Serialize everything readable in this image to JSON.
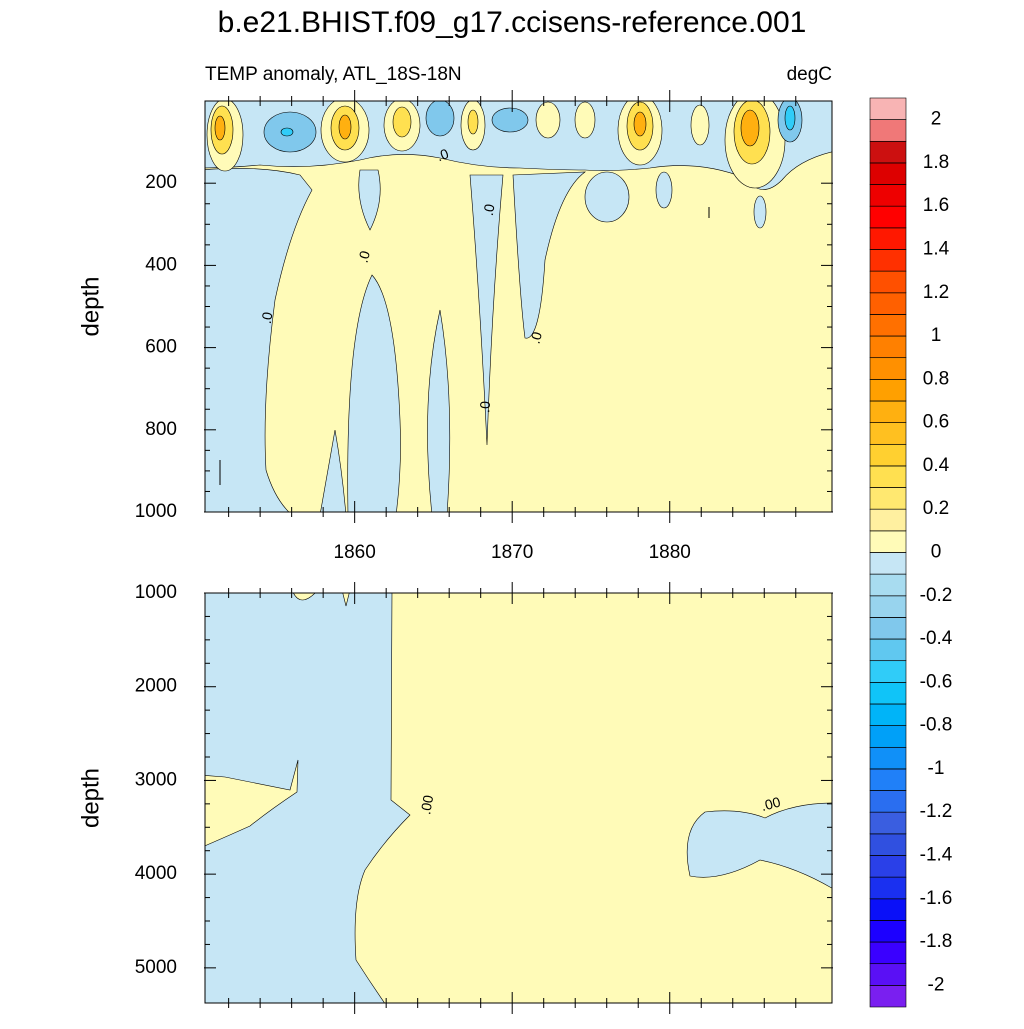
{
  "chart_data": {
    "type": "contour",
    "title": "b.e21.BHIST.f09_g17.ccisens-reference.001",
    "subtitle_left": "TEMP anomaly, ATL_18S-18N",
    "subtitle_right": "degC",
    "contour_labels": [
      ".0",
      ".0",
      ".0",
      ".0",
      ".0",
      ".0",
      ".00",
      ".00"
    ],
    "panels": [
      {
        "ylabel": "depth",
        "ylim": [
          0,
          1000
        ],
        "yticks": [
          200,
          400,
          600,
          800,
          1000
        ],
        "xlim": [
          1850.5,
          1890.3
        ],
        "xticks": [
          1860,
          1870,
          1880
        ],
        "xtick_labels": true
      },
      {
        "ylabel": "depth",
        "ylim": [
          1000,
          5375
        ],
        "yticks": [
          1000,
          2000,
          3000,
          4000,
          5000
        ],
        "xlim": [
          1850.5,
          1890.3
        ],
        "xticks": [
          1860,
          1870,
          1880
        ],
        "xtick_labels": false
      }
    ],
    "colorbar": {
      "levels": [
        -2,
        -1.9,
        -1.8,
        -1.7,
        -1.6,
        -1.5,
        -1.4,
        -1.3,
        -1.2,
        -1.1,
        -1,
        -0.9,
        -0.8,
        -0.7,
        -0.6,
        -0.5,
        -0.4,
        -0.3,
        -0.2,
        -0.1,
        0,
        0.1,
        0.2,
        0.3,
        0.4,
        0.5,
        0.6,
        0.7,
        0.8,
        0.9,
        1,
        1.1,
        1.2,
        1.3,
        1.4,
        1.5,
        1.6,
        1.7,
        1.8,
        1.9,
        2
      ],
      "ticks": [
        -2,
        -1.8,
        -1.6,
        -1.4,
        -1.2,
        -1,
        -0.8,
        -0.6,
        -0.4,
        -0.2,
        0,
        0.2,
        0.4,
        0.6,
        0.8,
        1,
        1.2,
        1.4,
        1.6,
        1.8,
        2
      ],
      "colors": [
        "#7a1ff0",
        "#5a10f5",
        "#3a00ff",
        "#1c00ff",
        "#0a10f8",
        "#1a30f0",
        "#2a40e8",
        "#3050e0",
        "#3a5ee0",
        "#2a6ef0",
        "#2080f8",
        "#1090f8",
        "#00a0f8",
        "#00b4f8",
        "#10c4f8",
        "#30ccf8",
        "#60c8f0",
        "#80c8ec",
        "#98d4ee",
        "#a8dcf0",
        "#c6e6f5",
        "#fffbb8",
        "#fff0a0",
        "#ffe870",
        "#ffe050",
        "#ffd030",
        "#ffc020",
        "#ffb010",
        "#ffa000",
        "#ff9000",
        "#ff8000",
        "#ff7000",
        "#ff6000",
        "#ff5000",
        "#ff3000",
        "#ff1800",
        "#ff0000",
        "#ee0000",
        "#dd0000",
        "#cc1010",
        "#f07878",
        "#f8b4b4"
      ]
    }
  }
}
